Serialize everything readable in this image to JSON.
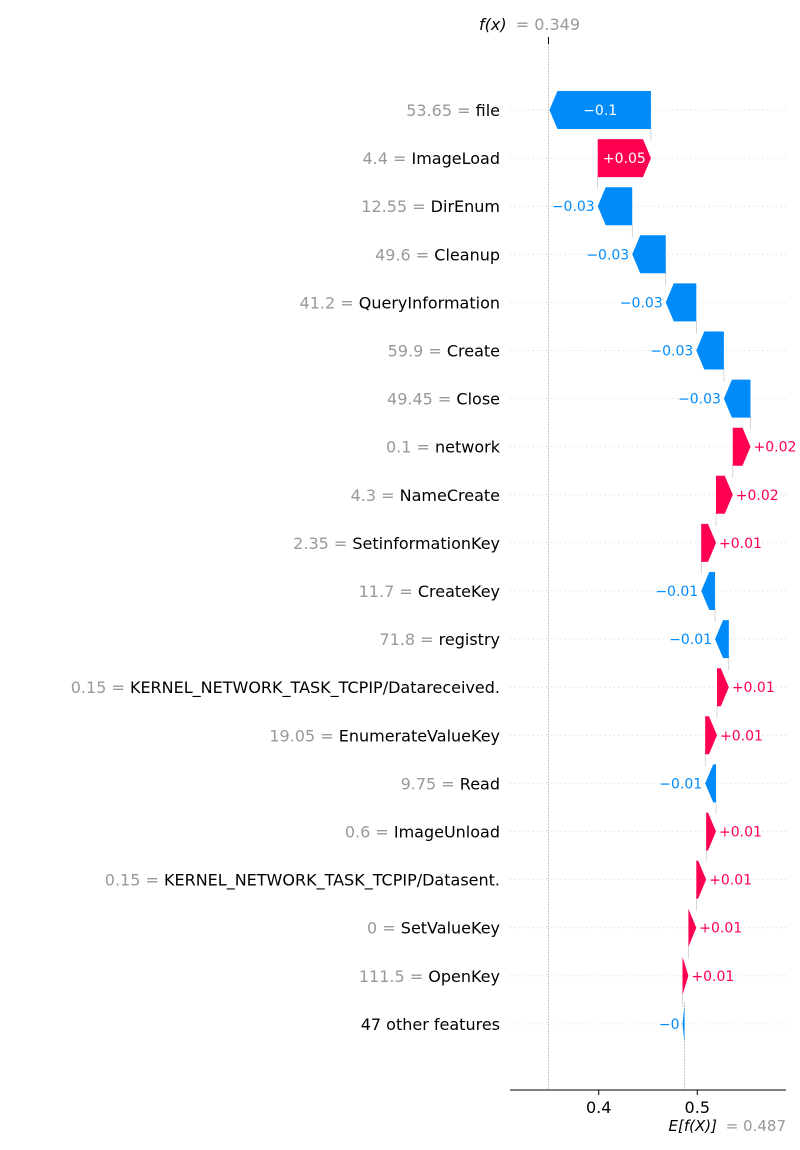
{
  "chart_data": {
    "type": "waterfall",
    "fx_label": "f(x)",
    "fx_value_text": "= 0.349",
    "fx": 0.349,
    "base_label": "E[f(X)]",
    "base_value_text": "= 0.487",
    "base_value": 0.487,
    "xlim": [
      0.31,
      0.59
    ],
    "xticks": [
      0.4,
      0.5
    ],
    "xtick_labels": [
      "0.4",
      "0.5"
    ],
    "colors": {
      "positive": "#ff0051",
      "negative": "#008bfb",
      "muted": "#999999"
    },
    "features": [
      {
        "value": "53.65",
        "name": "file",
        "shap": -0.103,
        "label": "−0.1"
      },
      {
        "value": "4.4",
        "name": "ImageLoad",
        "shap": 0.054,
        "label": "+0.05"
      },
      {
        "value": "12.55",
        "name": "DirEnum",
        "shap": -0.035,
        "label": "−0.03"
      },
      {
        "value": "49.6",
        "name": "Cleanup",
        "shap": -0.034,
        "label": "−0.03"
      },
      {
        "value": "41.2",
        "name": "QueryInformation",
        "shap": -0.031,
        "label": "−0.03"
      },
      {
        "value": "59.9",
        "name": "Create",
        "shap": -0.028,
        "label": "−0.03"
      },
      {
        "value": "49.45",
        "name": "Close",
        "shap": -0.027,
        "label": "−0.03"
      },
      {
        "value": "0.1",
        "name": "network",
        "shap": 0.018,
        "label": "+0.02"
      },
      {
        "value": "4.3",
        "name": "NameCreate",
        "shap": 0.017,
        "label": "+0.02"
      },
      {
        "value": "2.35",
        "name": "SetinformationKey",
        "shap": 0.015,
        "label": "+0.01"
      },
      {
        "value": "11.7",
        "name": "CreateKey",
        "shap": -0.014,
        "label": "−0.01"
      },
      {
        "value": "71.8",
        "name": "registry",
        "shap": -0.014,
        "label": "−0.01"
      },
      {
        "value": "0.15",
        "name": "KERNEL_NETWORK_TASK_TCPIP/Datareceived.",
        "shap": 0.012,
        "label": "+0.01"
      },
      {
        "value": "19.05",
        "name": "EnumerateValueKey",
        "shap": 0.012,
        "label": "+0.01"
      },
      {
        "value": "9.75",
        "name": "Read",
        "shap": -0.011,
        "label": "−0.01"
      },
      {
        "value": "0.6",
        "name": "ImageUnload",
        "shap": 0.01,
        "label": "+0.01"
      },
      {
        "value": "0.15",
        "name": "KERNEL_NETWORK_TASK_TCPIP/Datasent.",
        "shap": 0.01,
        "label": "+0.01"
      },
      {
        "value": "0",
        "name": "SetValueKey",
        "shap": 0.008,
        "label": "+0.01"
      },
      {
        "value": "111.5",
        "name": "OpenKey",
        "shap": 0.006,
        "label": "+0.01"
      },
      {
        "value": "",
        "name": "47 other features",
        "shap": -0.002,
        "label": "−0"
      }
    ]
  }
}
